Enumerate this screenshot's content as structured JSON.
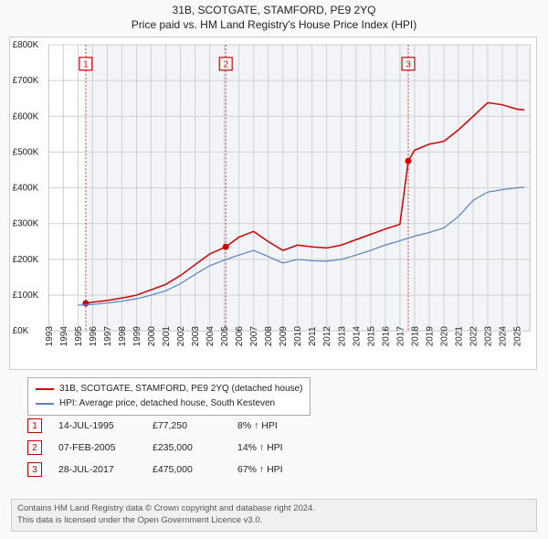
{
  "title_main": "31B, SCOTGATE, STAMFORD, PE9 2YQ",
  "title_sub": "Price paid vs. HM Land Registry's House Price Index (HPI)",
  "chart": {
    "type": "line",
    "background_color": "#ffffff",
    "grid_color": "#d0d0d0",
    "plot_bg_band_color": "#f2f4f8",
    "frame_color": "#cccccc",
    "label_fontsize": 10,
    "x_axis": {
      "min": 1993,
      "max": 2025.9,
      "tick_step": 1,
      "ticks": [
        1993,
        1994,
        1995,
        1996,
        1997,
        1998,
        1999,
        2000,
        2001,
        2002,
        2003,
        2004,
        2005,
        2006,
        2007,
        2008,
        2009,
        2010,
        2011,
        2012,
        2013,
        2014,
        2015,
        2016,
        2017,
        2018,
        2019,
        2020,
        2021,
        2022,
        2023,
        2024,
        2025
      ]
    },
    "y_axis": {
      "min": 0,
      "max": 800000,
      "tick_step": 100000,
      "tick_labels": [
        "£0K",
        "£100K",
        "£200K",
        "£300K",
        "£400K",
        "£500K",
        "£600K",
        "£700K",
        "£800K"
      ]
    },
    "reference_lines": [
      {
        "x": 1995.53,
        "label": "1"
      },
      {
        "x": 2005.1,
        "label": "2"
      },
      {
        "x": 2017.57,
        "label": "3"
      }
    ],
    "marker_box": {
      "fill": "#ffffff",
      "stroke": "#cc0000",
      "text_color": "#cc0000",
      "size": 14
    },
    "series": [
      {
        "name": "price_paid",
        "label": "31B, SCOTGATE, STAMFORD, PE9 2YQ (detached house)",
        "color": "#cc0000",
        "line_width": 1.5,
        "marker_color": "#cc0000",
        "marker_radius": 3.5,
        "markers_at": [
          [
            1995.53,
            77250
          ],
          [
            2005.1,
            235000
          ],
          [
            2017.57,
            475000
          ]
        ],
        "points": [
          [
            1995.53,
            77250
          ],
          [
            1996,
            80000
          ],
          [
            1997,
            85000
          ],
          [
            1998,
            92000
          ],
          [
            1999,
            100000
          ],
          [
            2000,
            115000
          ],
          [
            2001,
            130000
          ],
          [
            2002,
            155000
          ],
          [
            2003,
            185000
          ],
          [
            2004,
            215000
          ],
          [
            2005.1,
            235000
          ],
          [
            2006,
            262000
          ],
          [
            2007,
            278000
          ],
          [
            2008,
            250000
          ],
          [
            2009,
            225000
          ],
          [
            2010,
            240000
          ],
          [
            2011,
            235000
          ],
          [
            2012,
            232000
          ],
          [
            2013,
            240000
          ],
          [
            2014,
            255000
          ],
          [
            2015,
            270000
          ],
          [
            2016,
            285000
          ],
          [
            2017,
            298000
          ],
          [
            2017.57,
            475000
          ],
          [
            2018,
            505000
          ],
          [
            2019,
            522000
          ],
          [
            2020,
            530000
          ],
          [
            2021,
            562000
          ],
          [
            2022,
            600000
          ],
          [
            2023,
            638000
          ],
          [
            2024,
            632000
          ],
          [
            2025,
            620000
          ],
          [
            2025.5,
            618000
          ]
        ]
      },
      {
        "name": "hpi",
        "label": "HPI: Average price, detached house, South Kesteven",
        "color": "#5b7fb8",
        "line_width": 1.2,
        "points": [
          [
            1995,
            72000
          ],
          [
            1996,
            74000
          ],
          [
            1997,
            78000
          ],
          [
            1998,
            83000
          ],
          [
            1999,
            90000
          ],
          [
            2000,
            100000
          ],
          [
            2001,
            112000
          ],
          [
            2002,
            132000
          ],
          [
            2003,
            158000
          ],
          [
            2004,
            182000
          ],
          [
            2005,
            198000
          ],
          [
            2006,
            212000
          ],
          [
            2007,
            225000
          ],
          [
            2008,
            208000
          ],
          [
            2009,
            190000
          ],
          [
            2010,
            200000
          ],
          [
            2011,
            196000
          ],
          [
            2012,
            195000
          ],
          [
            2013,
            200000
          ],
          [
            2014,
            212000
          ],
          [
            2015,
            225000
          ],
          [
            2016,
            240000
          ],
          [
            2017,
            252000
          ],
          [
            2018,
            265000
          ],
          [
            2019,
            275000
          ],
          [
            2020,
            288000
          ],
          [
            2021,
            320000
          ],
          [
            2022,
            365000
          ],
          [
            2023,
            388000
          ],
          [
            2024,
            395000
          ],
          [
            2025,
            400000
          ],
          [
            2025.5,
            402000
          ]
        ]
      }
    ]
  },
  "legend": {
    "items": [
      {
        "color": "#cc0000",
        "label": "31B, SCOTGATE, STAMFORD, PE9 2YQ (detached house)"
      },
      {
        "color": "#5b7fb8",
        "label": "HPI: Average price, detached house, South Kesteven"
      }
    ]
  },
  "sales": [
    {
      "n": "1",
      "date": "14-JUL-1995",
      "price": "£77,250",
      "pct": "8% ↑ HPI"
    },
    {
      "n": "2",
      "date": "07-FEB-2005",
      "price": "£235,000",
      "pct": "14% ↑ HPI"
    },
    {
      "n": "3",
      "date": "28-JUL-2017",
      "price": "£475,000",
      "pct": "67% ↑ HPI"
    }
  ],
  "footer_line1": "Contains HM Land Registry data © Crown copyright and database right 2024.",
  "footer_line2": "This data is licensed under the Open Government Licence v3.0."
}
